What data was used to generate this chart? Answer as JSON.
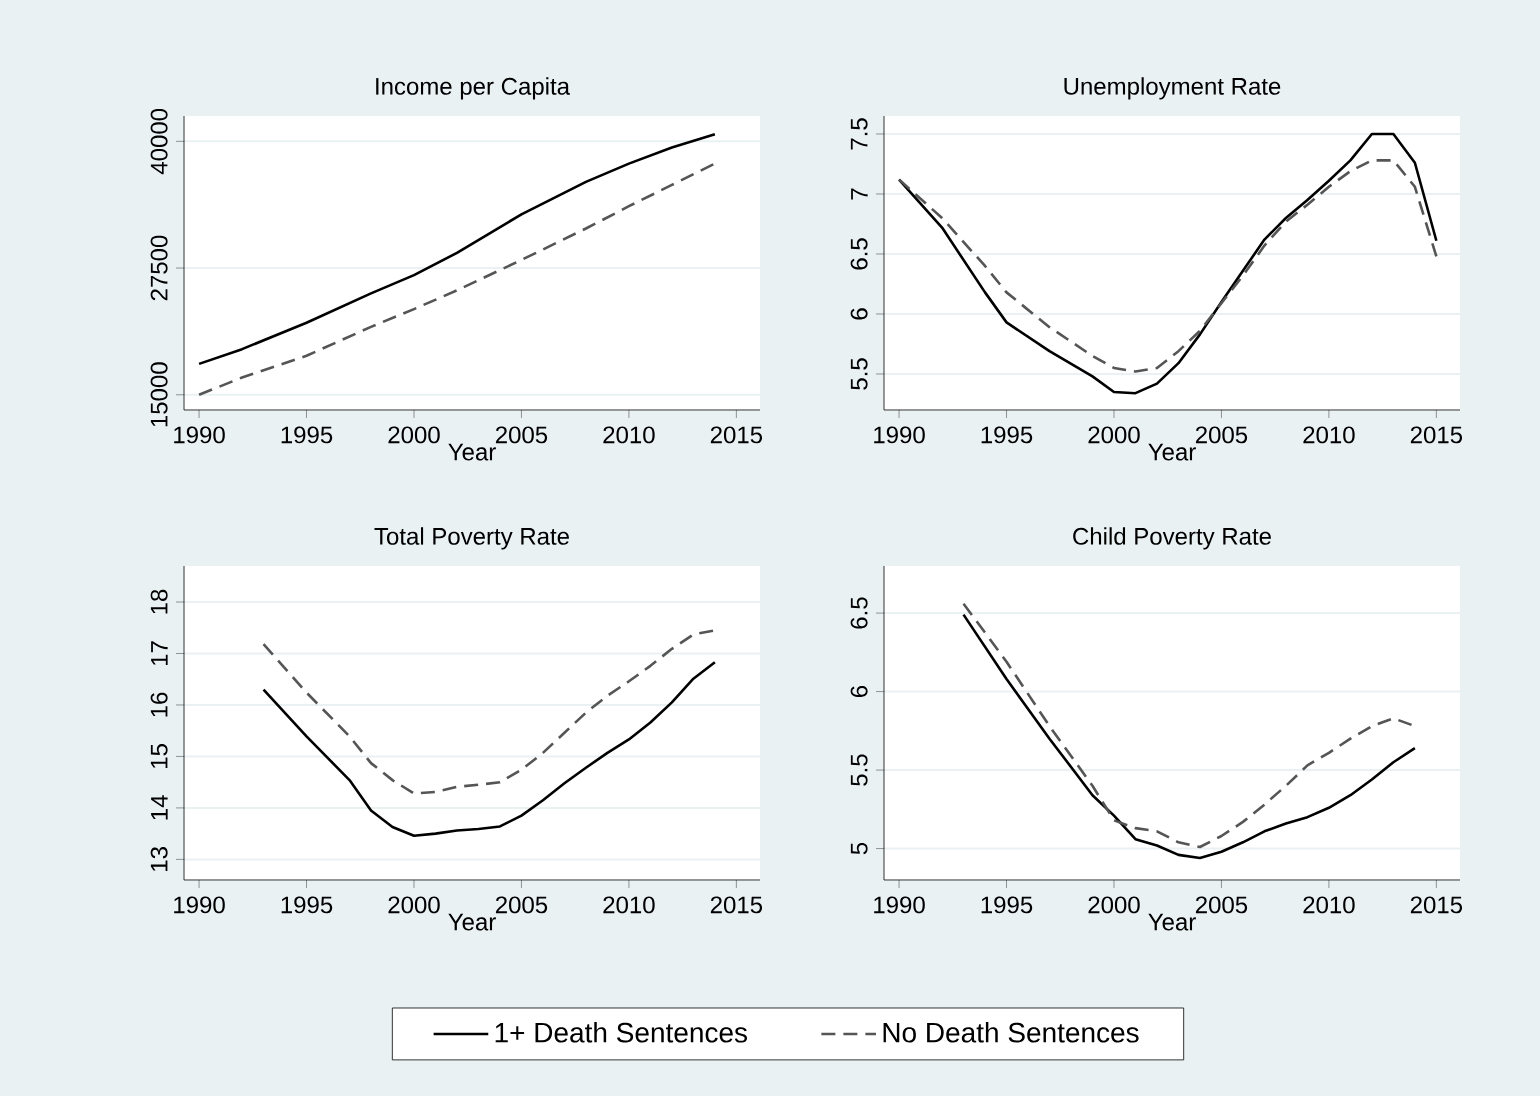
{
  "chart_data": [
    {
      "type": "line",
      "title": "Income per Capita",
      "xlabel": "Year",
      "xlim": [
        1989.3,
        2016.1
      ],
      "ylim": [
        13500,
        42500
      ],
      "xticks": [
        1990,
        1995,
        2000,
        2005,
        2010,
        2015
      ],
      "yticks": [
        15000,
        27500,
        40000
      ],
      "grid": "y",
      "legend": "bottom",
      "series": [
        {
          "name": "1+ Death Sentences",
          "color": "#000000",
          "line_style": "solid",
          "x": [
            1990,
            1992,
            1995,
            1998,
            2000,
            2002,
            2005,
            2008,
            2010,
            2012,
            2014
          ],
          "values": [
            18050,
            19500,
            22100,
            25000,
            26800,
            29000,
            32800,
            36000,
            37800,
            39400,
            40700
          ]
        },
        {
          "name": "No Death Sentences",
          "color": "#555555",
          "line_style": "dashed",
          "x": [
            1990,
            1992,
            1995,
            1998,
            2000,
            2002,
            2005,
            2008,
            2010,
            2012,
            2014
          ],
          "values": [
            15000,
            16700,
            18850,
            21700,
            23450,
            25300,
            28300,
            31400,
            33600,
            35700,
            37800
          ]
        }
      ]
    },
    {
      "type": "line",
      "title": "Unemployment Rate",
      "xlabel": "Year",
      "xlim": [
        1989.3,
        2016.1
      ],
      "ylim": [
        5.2,
        7.65
      ],
      "xticks": [
        1990,
        1995,
        2000,
        2005,
        2010,
        2015
      ],
      "yticks": [
        5.5,
        6,
        6.5,
        7,
        7.5
      ],
      "grid": "y",
      "series": [
        {
          "color": "#000000",
          "line_style": "solid",
          "x": [
            1990,
            1992,
            1994,
            1995,
            1997,
            1999,
            2000,
            2001,
            2002,
            2003,
            2004,
            2005,
            2006,
            2007,
            2008,
            2009,
            2010,
            2011,
            2012,
            2013,
            2014,
            2015
          ],
          "values": [
            7.12,
            6.72,
            6.18,
            5.93,
            5.69,
            5.48,
            5.35,
            5.34,
            5.42,
            5.59,
            5.83,
            6.1,
            6.36,
            6.62,
            6.8,
            6.95,
            7.11,
            7.28,
            7.5,
            7.5,
            7.26,
            6.61
          ]
        },
        {
          "color": "#555555",
          "line_style": "dashed",
          "x": [
            1990,
            1992,
            1994,
            1995,
            1997,
            1999,
            2000,
            2001,
            2002,
            2003,
            2004,
            2005,
            2006,
            2007,
            2008,
            2009,
            2010,
            2011,
            2012,
            2013,
            2014,
            2015
          ],
          "values": [
            7.12,
            6.8,
            6.4,
            6.18,
            5.89,
            5.65,
            5.55,
            5.52,
            5.55,
            5.69,
            5.86,
            6.09,
            6.32,
            6.57,
            6.77,
            6.91,
            7.06,
            7.19,
            7.28,
            7.28,
            7.06,
            6.48
          ]
        }
      ]
    },
    {
      "type": "line",
      "title": "Total Poverty Rate",
      "xlabel": "Year",
      "xlim": [
        1989.3,
        2016.1
      ],
      "ylim": [
        12.6,
        18.7
      ],
      "xticks": [
        1990,
        1995,
        2000,
        2005,
        2010,
        2015
      ],
      "yticks": [
        13,
        14,
        15,
        16,
        17,
        18
      ],
      "grid": "y",
      "series": [
        {
          "color": "#000000",
          "line_style": "solid",
          "x": [
            1993,
            1995,
            1997,
            1998,
            1999,
            2000,
            2001,
            2002,
            2003,
            2004,
            2005,
            2006,
            2007,
            2008,
            2009,
            2010,
            2011,
            2012,
            2013,
            2014
          ],
          "values": [
            16.3,
            15.39,
            14.54,
            13.95,
            13.63,
            13.46,
            13.5,
            13.56,
            13.59,
            13.64,
            13.85,
            14.15,
            14.48,
            14.78,
            15.07,
            15.33,
            15.66,
            16.05,
            16.51,
            16.83
          ]
        },
        {
          "color": "#555555",
          "line_style": "dashed",
          "x": [
            1993,
            1995,
            1997,
            1998,
            1999,
            2000,
            2001,
            2002,
            2003,
            2004,
            2005,
            2006,
            2007,
            2008,
            2009,
            2010,
            2011,
            2012,
            2013,
            2014
          ],
          "values": [
            17.18,
            16.24,
            15.39,
            14.87,
            14.54,
            14.28,
            14.31,
            14.41,
            14.45,
            14.5,
            14.74,
            15.07,
            15.46,
            15.85,
            16.18,
            16.46,
            16.76,
            17.09,
            17.37,
            17.45
          ]
        }
      ]
    },
    {
      "type": "line",
      "title": "Child Poverty Rate",
      "xlabel": "Year",
      "xlim": [
        1989.3,
        2016.1
      ],
      "ylim": [
        4.8,
        6.8
      ],
      "xticks": [
        1990,
        1995,
        2000,
        2005,
        2010,
        2015
      ],
      "yticks": [
        5,
        5.5,
        6,
        6.5
      ],
      "grid": "y",
      "series": [
        {
          "color": "#000000",
          "line_style": "solid",
          "x": [
            1993,
            1995,
            1997,
            1999,
            2000,
            2001,
            2002,
            2003,
            2004,
            2005,
            2006,
            2007,
            2008,
            2009,
            2010,
            2011,
            2012,
            2013,
            2014
          ],
          "values": [
            6.49,
            6.08,
            5.7,
            5.34,
            5.21,
            5.06,
            5.02,
            4.96,
            4.94,
            4.98,
            5.04,
            5.11,
            5.16,
            5.2,
            5.26,
            5.34,
            5.44,
            5.55,
            5.64
          ]
        },
        {
          "color": "#555555",
          "line_style": "dashed",
          "x": [
            1993,
            1995,
            1997,
            1999,
            2000,
            2001,
            2002,
            2003,
            2004,
            2005,
            2006,
            2007,
            2008,
            2009,
            2010,
            2011,
            2012,
            2013,
            2014
          ],
          "values": [
            6.56,
            6.19,
            5.78,
            5.4,
            5.18,
            5.13,
            5.11,
            5.04,
            5.01,
            5.08,
            5.17,
            5.28,
            5.4,
            5.53,
            5.61,
            5.7,
            5.78,
            5.83,
            5.78
          ]
        }
      ]
    }
  ]
}
